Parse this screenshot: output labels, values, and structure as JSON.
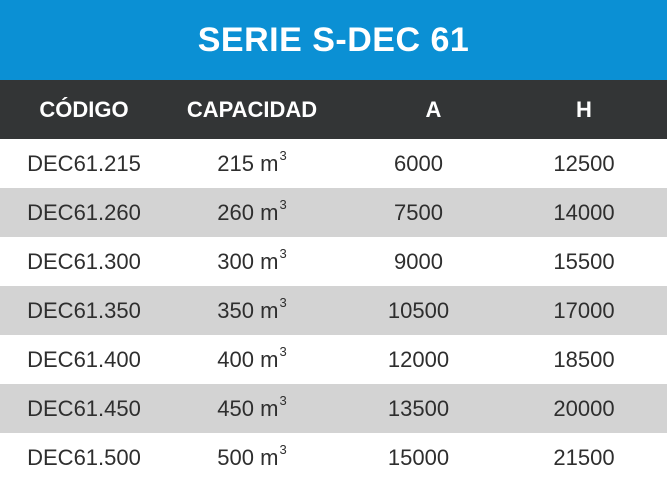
{
  "title": "SERIE S-DEC 61",
  "headers": [
    "CÓDIGO",
    "CAPACIDAD",
    "A",
    "H"
  ],
  "capacity_unit": "m",
  "capacity_unit_exponent": "3",
  "rows": [
    {
      "codigo": "DEC61.215",
      "capacidad": "215",
      "a": "6000",
      "h": "12500"
    },
    {
      "codigo": "DEC61.260",
      "capacidad": "260",
      "a": "7500",
      "h": "14000"
    },
    {
      "codigo": "DEC61.300",
      "capacidad": "300",
      "a": "9000",
      "h": "15500"
    },
    {
      "codigo": "DEC61.350",
      "capacidad": "350",
      "a": "10500",
      "h": "17000"
    },
    {
      "codigo": "DEC61.400",
      "capacidad": "400",
      "a": "12000",
      "h": "18500"
    },
    {
      "codigo": "DEC61.450",
      "capacidad": "450",
      "a": "13500",
      "h": "20000"
    },
    {
      "codigo": "DEC61.500",
      "capacidad": "500",
      "a": "15000",
      "h": "21500"
    }
  ],
  "colors": {
    "title_background": "#0b90d4",
    "header_background": "#333536",
    "shaded_row": "#d3d3d3"
  }
}
